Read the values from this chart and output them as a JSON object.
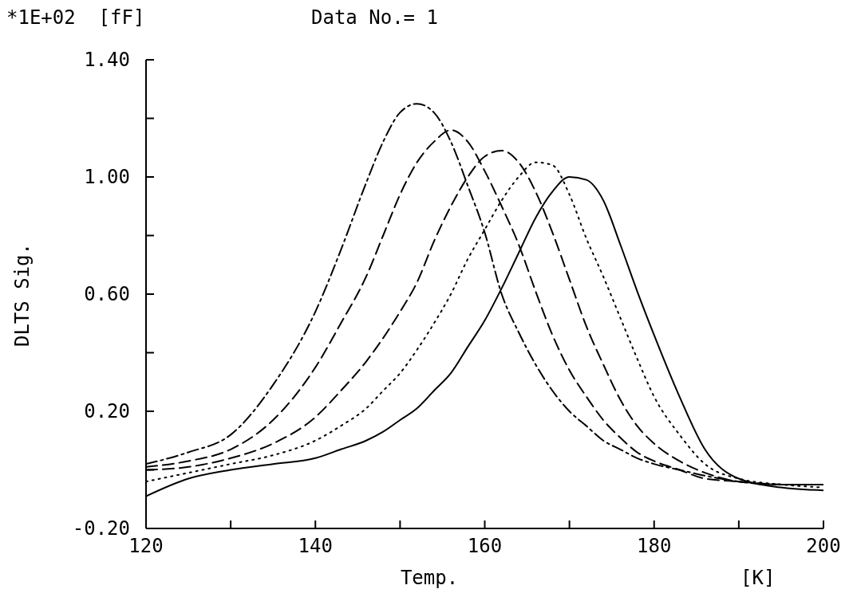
{
  "chart_data": {
    "type": "line",
    "title": "Data No.= 1",
    "xlabel": "Temp.",
    "ylabel": "DLTS Sig.",
    "annotations": [
      "*1E+02  [fF]",
      "[K]"
    ],
    "x": [
      120,
      125,
      130,
      135,
      140,
      143,
      146,
      148,
      150,
      152,
      154,
      156,
      158,
      160,
      162,
      164,
      166,
      168,
      170,
      172,
      174,
      176,
      178,
      180,
      183,
      186,
      190,
      195,
      200
    ],
    "series": [
      {
        "color": "#000000",
        "line_style": "dashdot",
        "values": [
          0.02,
          0.06,
          0.12,
          0.29,
          0.54,
          0.75,
          0.98,
          1.12,
          1.22,
          1.25,
          1.22,
          1.12,
          0.97,
          0.81,
          0.6,
          0.47,
          0.36,
          0.27,
          0.2,
          0.15,
          0.1,
          0.07,
          0.04,
          0.02,
          0.0,
          -0.02,
          -0.04,
          -0.05,
          -0.05
        ]
      },
      {
        "color": "#000000",
        "line_style": "dashed",
        "values": [
          0.01,
          0.03,
          0.07,
          0.17,
          0.35,
          0.5,
          0.66,
          0.8,
          0.94,
          1.05,
          1.12,
          1.16,
          1.12,
          1.02,
          0.9,
          0.77,
          0.61,
          0.46,
          0.34,
          0.25,
          0.17,
          0.11,
          0.06,
          0.03,
          0.0,
          -0.03,
          -0.04,
          -0.05,
          -0.05
        ]
      },
      {
        "color": "#000000",
        "line_style": "dashed",
        "values": [
          0.0,
          0.01,
          0.04,
          0.09,
          0.18,
          0.27,
          0.37,
          0.45,
          0.54,
          0.64,
          0.78,
          0.9,
          1.0,
          1.07,
          1.09,
          1.05,
          0.95,
          0.81,
          0.65,
          0.49,
          0.36,
          0.24,
          0.15,
          0.09,
          0.03,
          -0.01,
          -0.04,
          -0.05,
          -0.05
        ]
      },
      {
        "color": "#000000",
        "line_style": "dotted",
        "values": [
          -0.04,
          -0.01,
          0.02,
          0.05,
          0.1,
          0.15,
          0.21,
          0.27,
          0.33,
          0.41,
          0.5,
          0.6,
          0.72,
          0.82,
          0.92,
          1.0,
          1.05,
          1.04,
          0.94,
          0.79,
          0.66,
          0.52,
          0.38,
          0.25,
          0.12,
          0.02,
          -0.03,
          -0.05,
          -0.06
        ]
      },
      {
        "color": "#000000",
        "line_style": "solid",
        "values": [
          -0.09,
          -0.03,
          0.0,
          0.02,
          0.04,
          0.07,
          0.1,
          0.13,
          0.17,
          0.21,
          0.27,
          0.33,
          0.42,
          0.51,
          0.62,
          0.74,
          0.86,
          0.95,
          1.0,
          0.99,
          0.92,
          0.77,
          0.61,
          0.46,
          0.25,
          0.07,
          -0.03,
          -0.06,
          -0.07
        ]
      }
    ],
    "xlim": [
      120,
      200
    ],
    "xticks": [
      120,
      {
        "value": 130,
        "label": null
      },
      140,
      {
        "value": 150,
        "label": null
      },
      160,
      {
        "value": 170,
        "label": null
      },
      180,
      {
        "value": 190,
        "label": null
      },
      200
    ],
    "ylim": [
      -0.2,
      1.4
    ],
    "yticks": [
      {
        "value": -0.2,
        "label": "-0.20"
      },
      {
        "value": 0,
        "label": null
      },
      {
        "value": 0.2,
        "label": "0.20"
      },
      {
        "value": 0.4,
        "label": null
      },
      {
        "value": 0.6,
        "label": "0.60"
      },
      {
        "value": 0.8,
        "label": null
      },
      {
        "value": 1.0,
        "label": "1.00"
      },
      {
        "value": 1.2,
        "label": null
      },
      {
        "value": 1.4,
        "label": "1.40"
      }
    ],
    "grid": false,
    "legend": false,
    "marker": "none"
  }
}
